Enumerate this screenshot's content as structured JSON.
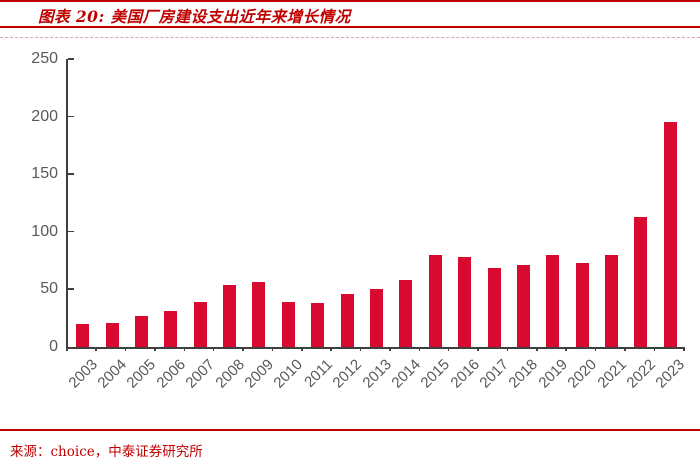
{
  "header": {
    "title": "图表 20: 美国厂房建设支出近年来增长情况"
  },
  "footer": {
    "source_label": "来源：choice，中泰证券研究所"
  },
  "colors": {
    "accent_red": "#C00000",
    "bar_red": "#D80A30",
    "axis_gray": "#3F3F3F",
    "tick_label_gray": "#595959",
    "dashed_pink": "#D9A7A7"
  },
  "chart_data": {
    "type": "bar",
    "title": "图表 20: 美国厂房建设支出近年来增长情况",
    "categories": [
      "2003",
      "2004",
      "2005",
      "2006",
      "2007",
      "2008",
      "2009",
      "2010",
      "2011",
      "2012",
      "2013",
      "2014",
      "2015",
      "2016",
      "2017",
      "2018",
      "2019",
      "2020",
      "2021",
      "2022",
      "2023"
    ],
    "values": [
      20,
      21,
      27,
      31,
      39,
      54,
      56,
      39,
      38,
      46,
      50,
      58,
      80,
      78,
      69,
      71,
      80,
      73,
      80,
      113,
      195
    ],
    "xlabel": "",
    "ylabel": "",
    "ylim": [
      0,
      250
    ],
    "yticks": [
      0,
      50,
      100,
      150,
      200,
      250
    ],
    "grid": false,
    "legend": null
  }
}
